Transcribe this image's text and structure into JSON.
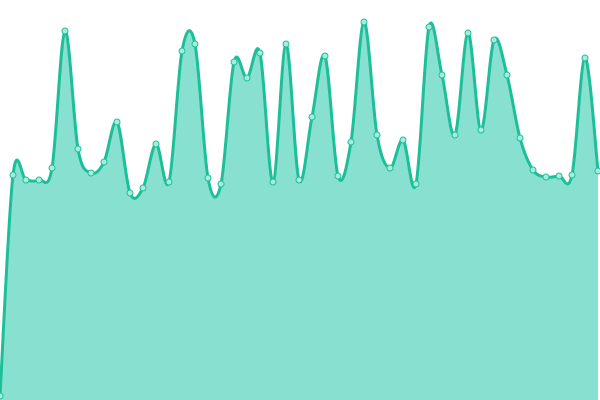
{
  "chart_data": {
    "type": "area",
    "title": "",
    "xlabel": "",
    "ylabel": "",
    "grid": false,
    "legend": "none",
    "smooth": true,
    "ylim": [
      0,
      400
    ],
    "x": [
      0,
      1,
      2,
      3,
      4,
      5,
      6,
      7,
      8,
      9,
      10,
      11,
      12,
      13,
      14,
      15,
      16,
      17,
      18,
      19,
      20,
      21,
      22,
      23,
      24,
      25,
      26,
      27,
      28,
      29,
      30,
      31,
      32,
      33,
      34,
      35,
      36,
      37,
      38,
      39,
      40,
      41,
      42,
      43,
      44,
      45,
      46
    ],
    "series": [
      {
        "values": [
          4,
          225,
          220,
          220,
          232,
          369,
          251,
          227,
          238,
          278,
          207,
          212,
          256,
          218,
          349,
          356,
          222,
          216,
          338,
          322,
          347,
          218,
          356,
          220,
          283,
          344,
          224,
          258,
          378,
          265,
          232,
          260,
          216,
          373,
          325,
          265,
          367,
          270,
          360,
          325,
          262,
          230,
          223,
          224,
          225,
          342,
          229
        ]
      }
    ],
    "colors": {
      "fill": "#88e0d0",
      "line": "#1dbf98",
      "point_fill": "#a8ecdc"
    }
  }
}
